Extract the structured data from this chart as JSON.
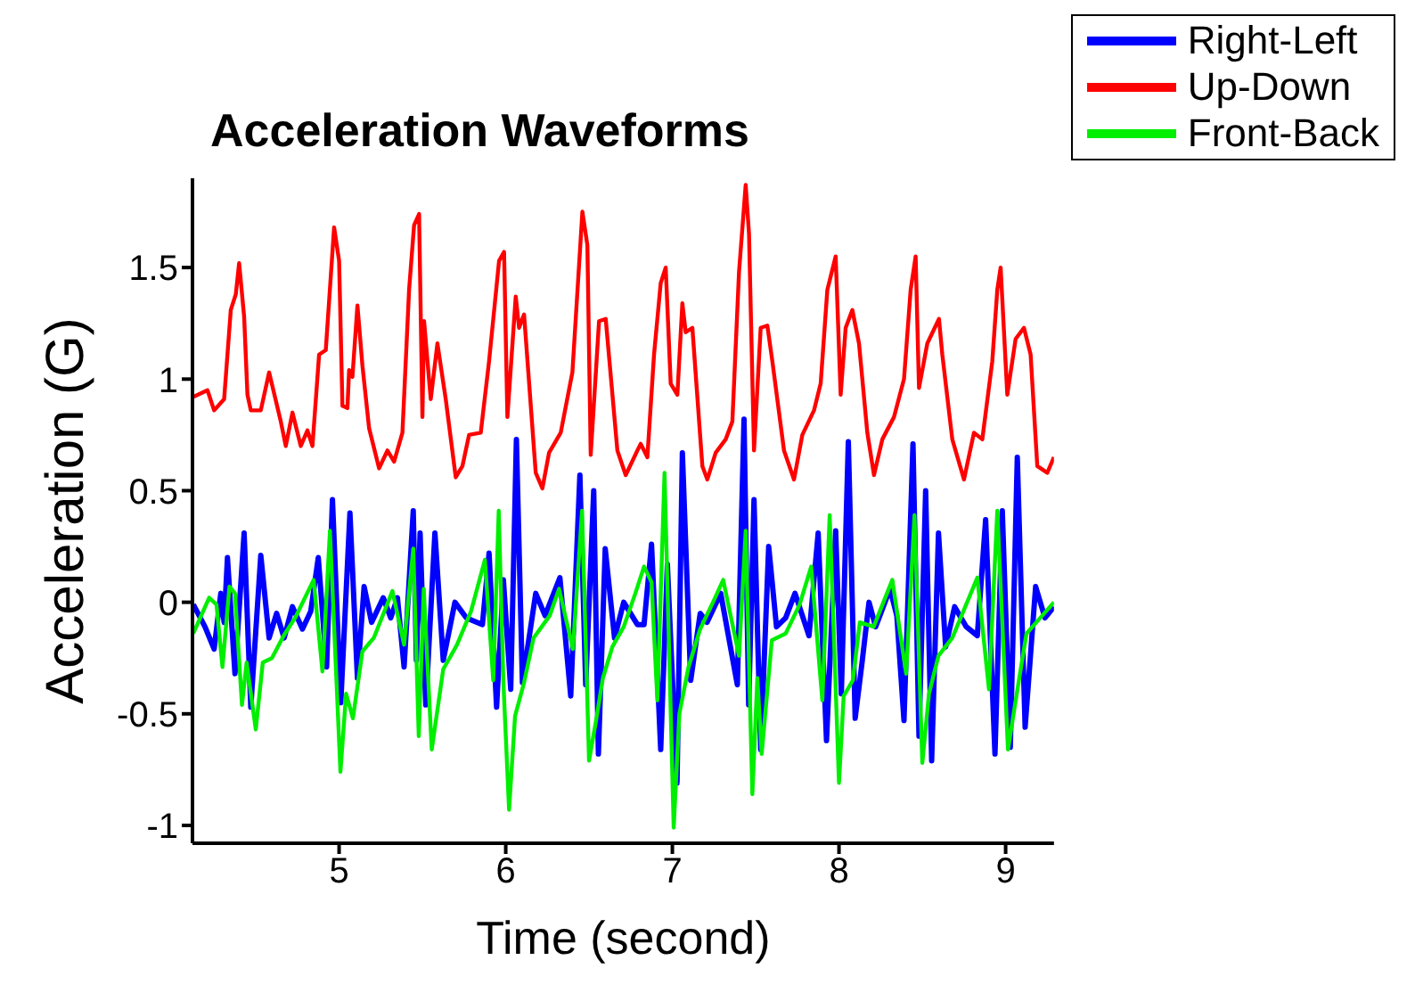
{
  "chart_data": {
    "type": "line",
    "title": "Acceleration Waveforms",
    "xlabel": "Time (second)",
    "ylabel": "Acceleration (G)",
    "xlim": [
      4.12,
      9.29
    ],
    "xticks": [
      5,
      6,
      7,
      8,
      9
    ],
    "ylim": [
      -1.08,
      1.9
    ],
    "yticks": [
      -1,
      -0.5,
      0,
      0.5,
      1,
      1.5
    ],
    "grid": false,
    "legend": "top right",
    "marker": "none",
    "line_style": "solid",
    "series": [
      {
        "name": "Right-Left",
        "color": "#0000ff",
        "x": [
          4.125,
          4.195,
          4.25,
          4.29,
          4.31,
          4.33,
          4.375,
          4.43,
          4.47,
          4.53,
          4.58,
          4.625,
          4.67,
          4.72,
          4.78,
          4.83,
          4.875,
          4.925,
          4.96,
          5.01,
          5.065,
          5.11,
          5.15,
          5.195,
          5.265,
          5.31,
          5.35,
          5.39,
          5.445,
          5.464,
          5.486,
          5.52,
          5.575,
          5.625,
          5.695,
          5.764,
          5.86,
          5.9,
          5.945,
          5.986,
          6.03,
          6.064,
          6.1,
          6.18,
          6.236,
          6.325,
          6.39,
          6.445,
          6.48,
          6.528,
          6.556,
          6.597,
          6.653,
          6.708,
          6.79,
          6.83,
          6.875,
          6.93,
          6.97,
          7.028,
          7.06,
          7.11,
          7.167,
          7.208,
          7.29,
          7.39,
          7.43,
          7.458,
          7.49,
          7.53,
          7.578,
          7.625,
          7.68,
          7.736,
          7.82,
          7.875,
          7.925,
          7.98,
          8.014,
          8.056,
          8.097,
          8.14,
          8.18,
          8.22,
          8.306,
          8.347,
          8.39,
          8.444,
          8.48,
          8.52,
          8.556,
          8.597,
          8.64,
          8.694,
          8.764,
          8.83,
          8.88,
          8.936,
          8.98,
          9.028,
          9.07,
          9.117,
          9.18,
          9.236,
          9.29
        ],
        "values": [
          -0.01,
          -0.11,
          -0.21,
          0.04,
          -0.09,
          0.2,
          -0.32,
          0.31,
          -0.47,
          0.21,
          -0.16,
          -0.05,
          -0.16,
          -0.02,
          -0.12,
          -0.04,
          0.2,
          -0.29,
          0.46,
          -0.45,
          0.4,
          -0.34,
          0.07,
          -0.09,
          0.02,
          -0.07,
          0.02,
          -0.29,
          0.41,
          -0.26,
          0.31,
          -0.46,
          0.31,
          -0.26,
          0,
          -0.07,
          -0.1,
          0.22,
          -0.47,
          0.1,
          -0.39,
          0.73,
          -0.36,
          0.04,
          -0.06,
          0.11,
          -0.42,
          0.57,
          -0.37,
          0.5,
          -0.68,
          0.24,
          -0.16,
          0,
          -0.1,
          -0.1,
          0.26,
          -0.66,
          0.17,
          -0.81,
          0.67,
          -0.35,
          -0.05,
          -0.09,
          0.04,
          -0.37,
          0.82,
          -0.46,
          0.46,
          -0.66,
          0.25,
          -0.11,
          -0.07,
          0.04,
          -0.15,
          0.31,
          -0.62,
          0.32,
          -0.41,
          0.72,
          -0.52,
          -0.26,
          0,
          -0.11,
          0.06,
          -0.06,
          -0.53,
          0.71,
          -0.6,
          0.5,
          -0.71,
          0.31,
          -0.2,
          -0.02,
          -0.11,
          -0.15,
          0.37,
          -0.68,
          0.41,
          -0.65,
          0.65,
          -0.56,
          0.07,
          -0.07,
          -0.02
        ]
      },
      {
        "name": "Up-Down",
        "color": "#ff0000",
        "x": [
          4.125,
          4.21,
          4.25,
          4.31,
          4.35,
          4.38,
          4.4,
          4.43,
          4.45,
          4.47,
          4.53,
          4.58,
          4.65,
          4.68,
          4.72,
          4.77,
          4.81,
          4.84,
          4.88,
          4.92,
          4.97,
          5,
          5.02,
          5.05,
          5.06,
          5.08,
          5.11,
          5.14,
          5.18,
          5.24,
          5.29,
          5.33,
          5.38,
          5.42,
          5.45,
          5.48,
          5.5,
          5.51,
          5.55,
          5.59,
          5.64,
          5.7,
          5.74,
          5.78,
          5.85,
          5.9,
          5.96,
          5.99,
          6.01,
          6.06,
          6.08,
          6.11,
          6.18,
          6.22,
          6.26,
          6.33,
          6.4,
          6.46,
          6.49,
          6.51,
          6.56,
          6.6,
          6.67,
          6.72,
          6.79,
          6.81,
          6.85,
          6.89,
          6.93,
          6.96,
          6.99,
          7.03,
          7.06,
          7.08,
          7.12,
          7.18,
          7.21,
          7.26,
          7.32,
          7.36,
          7.4,
          7.44,
          7.46,
          7.49,
          7.53,
          7.57,
          7.6,
          7.67,
          7.73,
          7.78,
          7.85,
          7.89,
          7.93,
          7.98,
          8.01,
          8.04,
          8.08,
          8.12,
          8.17,
          8.21,
          8.26,
          8.33,
          8.39,
          8.43,
          8.46,
          8.48,
          8.53,
          8.6,
          8.62,
          8.68,
          8.75,
          8.81,
          8.86,
          8.92,
          8.95,
          8.97,
          9.01,
          9.06,
          9.11,
          9.15,
          9.19,
          9.25,
          9.29
        ],
        "values": [
          0.92,
          0.95,
          0.86,
          0.91,
          1.31,
          1.38,
          1.52,
          1.28,
          0.93,
          0.86,
          0.86,
          1.03,
          0.81,
          0.7,
          0.85,
          0.7,
          0.77,
          0.7,
          1.11,
          1.13,
          1.68,
          1.53,
          0.88,
          0.87,
          1.04,
          1.01,
          1.33,
          1.06,
          0.78,
          0.6,
          0.68,
          0.63,
          0.76,
          1.4,
          1.69,
          1.74,
          0.83,
          1.26,
          0.91,
          1.16,
          0.91,
          0.56,
          0.61,
          0.75,
          0.76,
          1.08,
          1.53,
          1.57,
          0.83,
          1.37,
          1.23,
          1.29,
          0.58,
          0.51,
          0.67,
          0.76,
          1.03,
          1.75,
          1.6,
          0.66,
          1.26,
          1.27,
          0.68,
          0.57,
          0.68,
          0.71,
          0.65,
          1.11,
          1.43,
          1.5,
          0.98,
          0.93,
          1.34,
          1.21,
          1.23,
          0.61,
          0.55,
          0.67,
          0.73,
          0.81,
          1.48,
          1.87,
          1.65,
          0.68,
          1.23,
          1.24,
          1.08,
          0.68,
          0.55,
          0.75,
          0.86,
          0.98,
          1.4,
          1.55,
          0.93,
          1.23,
          1.31,
          1.16,
          0.76,
          0.57,
          0.73,
          0.83,
          1,
          1.4,
          1.55,
          0.96,
          1.16,
          1.27,
          1.11,
          0.73,
          0.55,
          0.76,
          0.73,
          1.08,
          1.4,
          1.5,
          0.93,
          1.18,
          1.23,
          1.11,
          0.61,
          0.58,
          0.65
        ]
      },
      {
        "name": "Front-Back",
        "color": "#00ee00",
        "x": [
          4.125,
          4.22,
          4.264,
          4.3,
          4.342,
          4.375,
          4.417,
          4.445,
          4.5,
          4.542,
          4.597,
          4.667,
          4.736,
          4.847,
          4.9,
          4.945,
          5.008,
          5.042,
          5.083,
          5.14,
          5.208,
          5.32,
          5.39,
          5.445,
          5.478,
          5.508,
          5.556,
          5.625,
          5.708,
          5.792,
          5.875,
          5.925,
          5.958,
          5.986,
          6.02,
          6.056,
          6.11,
          6.167,
          6.264,
          6.32,
          6.403,
          6.458,
          6.5,
          6.542,
          6.583,
          6.64,
          6.708,
          6.778,
          6.83,
          6.875,
          6.91,
          6.953,
          7.008,
          7.042,
          7.097,
          7.167,
          7.25,
          7.305,
          7.4,
          7.44,
          7.48,
          7.51,
          7.536,
          7.597,
          7.68,
          7.764,
          7.833,
          7.9,
          7.944,
          8,
          8.028,
          8.083,
          8.125,
          8.208,
          8.32,
          8.403,
          8.453,
          8.5,
          8.54,
          8.597,
          8.68,
          8.83,
          8.9,
          8.95,
          9.014,
          9.056,
          9.125,
          9.208,
          9.29
        ],
        "values": [
          -0.14,
          0.02,
          -0.01,
          -0.29,
          0.07,
          0.04,
          -0.46,
          -0.27,
          -0.57,
          -0.27,
          -0.25,
          -0.15,
          -0.07,
          0.1,
          -0.31,
          0.32,
          -0.76,
          -0.41,
          -0.52,
          -0.22,
          -0.16,
          0.05,
          -0.19,
          0.24,
          -0.6,
          0.06,
          -0.66,
          -0.3,
          -0.19,
          -0.04,
          0.19,
          -0.35,
          0.41,
          -0.36,
          -0.93,
          -0.51,
          -0.36,
          -0.16,
          -0.06,
          0.06,
          -0.21,
          0.41,
          -0.71,
          -0.53,
          -0.34,
          -0.2,
          -0.11,
          0.04,
          0.16,
          0.09,
          -0.44,
          0.58,
          -1.01,
          -0.5,
          -0.29,
          -0.12,
          0.01,
          0.1,
          -0.24,
          0.32,
          -0.86,
          -0.34,
          -0.68,
          -0.17,
          -0.14,
          -0.01,
          0.16,
          -0.44,
          0.39,
          -0.81,
          -0.42,
          -0.35,
          -0.09,
          -0.11,
          0.1,
          -0.32,
          0.39,
          -0.72,
          -0.41,
          -0.24,
          -0.16,
          0.11,
          -0.39,
          0.41,
          -0.66,
          -0.46,
          -0.14,
          -0.07,
          0
        ]
      }
    ]
  }
}
